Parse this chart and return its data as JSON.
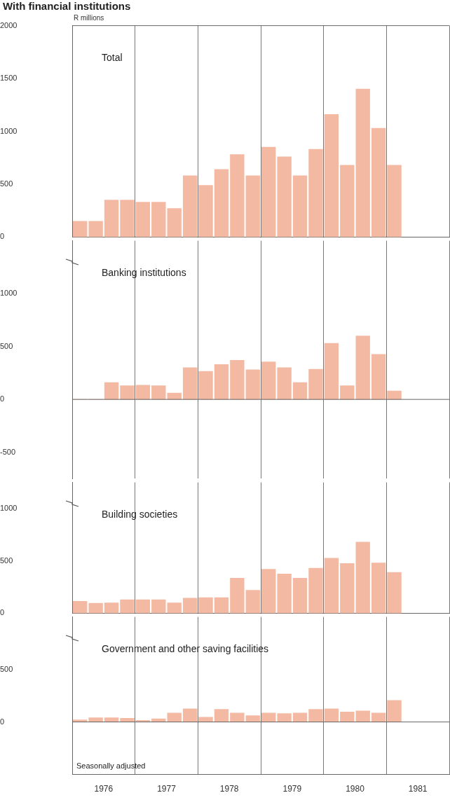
{
  "chart_data": [
    {
      "type": "bar",
      "title": "With financial institutions",
      "ylabel": "R millions",
      "grid": "x",
      "tick_labels": "y",
      "xlim": [
        1976,
        1982
      ],
      "xticks": [
        {
          "value": 1976,
          "label": null
        },
        {
          "value": 1977,
          "label": null
        },
        {
          "value": 1978,
          "label": null
        },
        {
          "value": 1979,
          "label": null
        },
        {
          "value": 1980,
          "label": null
        },
        {
          "value": 1981,
          "label": null
        },
        {
          "value": 1982,
          "label": null
        }
      ],
      "ylim": [
        0,
        2000
      ],
      "yticks": [
        0,
        500,
        1000,
        1500,
        2000
      ],
      "x": [
        1976.125,
        1976.375,
        1976.625,
        1976.875,
        1977.125,
        1977.375,
        1977.625,
        1977.875,
        1978.125,
        1978.375,
        1978.625,
        1978.875,
        1979.125,
        1979.375,
        1979.625,
        1979.875,
        1980.125,
        1980.375,
        1980.625,
        1980.875,
        1981.125
      ],
      "series": [
        {
          "name": "Total",
          "color": "#f4b9a2",
          "values": [
            150,
            150,
            350,
            350,
            330,
            330,
            270,
            580,
            490,
            640,
            780,
            580,
            850,
            760,
            580,
            830,
            1160,
            680,
            1400,
            1030,
            680
          ]
        }
      ]
    },
    {
      "type": "bar",
      "grid": "x",
      "tick_labels": "y",
      "xlim": [
        1976,
        1982
      ],
      "xticks": [
        {
          "value": 1976,
          "label": null
        },
        {
          "value": 1977,
          "label": null
        },
        {
          "value": 1978,
          "label": null
        },
        {
          "value": 1979,
          "label": null
        },
        {
          "value": 1980,
          "label": null
        },
        {
          "value": 1981,
          "label": null
        },
        {
          "value": 1982,
          "label": null
        }
      ],
      "ref_lines": [
        {
          "axis": "y",
          "value": 0
        }
      ],
      "ylim": [
        -750,
        1500
      ],
      "yticks": [
        -500,
        0,
        500,
        1000
      ],
      "x": [
        1976.125,
        1976.375,
        1976.625,
        1976.875,
        1977.125,
        1977.375,
        1977.625,
        1977.875,
        1978.125,
        1978.375,
        1978.625,
        1978.875,
        1979.125,
        1979.375,
        1979.625,
        1979.875,
        1980.125,
        1980.375,
        1980.625,
        1980.875,
        1981.125
      ],
      "series": [
        {
          "name": "Banking institutions",
          "color": "#f4b9a2",
          "values": [
            0,
            0,
            160,
            130,
            135,
            130,
            60,
            300,
            265,
            330,
            370,
            280,
            355,
            300,
            160,
            285,
            530,
            130,
            600,
            425,
            80
          ]
        }
      ]
    },
    {
      "type": "bar",
      "grid": "x",
      "tick_labels": "y",
      "xlim": [
        1976,
        1982
      ],
      "xticks": [
        {
          "value": 1976,
          "label": null
        },
        {
          "value": 1977,
          "label": null
        },
        {
          "value": 1978,
          "label": null
        },
        {
          "value": 1979,
          "label": null
        },
        {
          "value": 1980,
          "label": null
        },
        {
          "value": 1981,
          "label": null
        },
        {
          "value": 1982,
          "label": null
        }
      ],
      "ylim": [
        0,
        1250
      ],
      "yticks": [
        0,
        500,
        1000
      ],
      "x": [
        1976.125,
        1976.375,
        1976.625,
        1976.875,
        1977.125,
        1977.375,
        1977.625,
        1977.875,
        1978.125,
        1978.375,
        1978.625,
        1978.875,
        1979.125,
        1979.375,
        1979.625,
        1979.875,
        1980.125,
        1980.375,
        1980.625,
        1980.875,
        1981.125
      ],
      "series": [
        {
          "name": "Building societies",
          "color": "#f4b9a2",
          "values": [
            115,
            95,
            100,
            130,
            130,
            130,
            100,
            145,
            150,
            150,
            335,
            220,
            420,
            375,
            335,
            430,
            525,
            475,
            680,
            480,
            390
          ]
        }
      ]
    },
    {
      "type": "bar",
      "grid": "x",
      "annotations": [
        "Seasonally adjusted"
      ],
      "xlim": [
        1976,
        1982
      ],
      "xticks": [
        {
          "value": 1976,
          "label": null
        },
        {
          "value": 1976.5,
          "label": "1976"
        },
        {
          "value": 1977,
          "label": null
        },
        {
          "value": 1977.5,
          "label": "1977"
        },
        {
          "value": 1978,
          "label": null
        },
        {
          "value": 1978.5,
          "label": "1978"
        },
        {
          "value": 1979,
          "label": null
        },
        {
          "value": 1979.5,
          "label": "1979"
        },
        {
          "value": 1980,
          "label": null
        },
        {
          "value": 1980.5,
          "label": "1980"
        },
        {
          "value": 1981,
          "label": null
        },
        {
          "value": 1981.5,
          "label": "1981"
        },
        {
          "value": 1982,
          "label": null
        }
      ],
      "ref_lines": [
        {
          "axis": "y",
          "value": 0
        }
      ],
      "ylim": [
        -500,
        1000
      ],
      "yticks": [
        0,
        500
      ],
      "x": [
        1976.125,
        1976.375,
        1976.625,
        1976.875,
        1977.125,
        1977.375,
        1977.625,
        1977.875,
        1978.125,
        1978.375,
        1978.625,
        1978.875,
        1979.125,
        1979.375,
        1979.625,
        1979.875,
        1980.125,
        1980.375,
        1980.625,
        1980.875,
        1981.125
      ],
      "series": [
        {
          "name": "Government and other saving facilities",
          "color": "#f4b9a2",
          "values": [
            20,
            40,
            40,
            35,
            15,
            30,
            85,
            125,
            45,
            120,
            85,
            60,
            85,
            80,
            85,
            120,
            125,
            95,
            105,
            85,
            205
          ]
        }
      ]
    }
  ]
}
